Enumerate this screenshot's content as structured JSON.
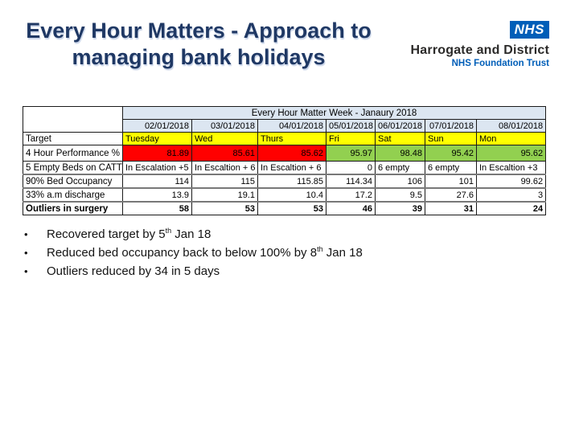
{
  "slide_title": {
    "line1": "Every Hour Matters - Approach to",
    "line2": "managing bank holidays"
  },
  "logo": {
    "nhs_text": "NHS",
    "org_name": "Harrogate and District",
    "org_sub": "NHS Foundation Trust"
  },
  "colors": {
    "title_navy": "#1f3864",
    "nhs_blue": "#005eb8",
    "header_blue": "#dce6f1",
    "day_yellow": "#ffff00",
    "alert_red": "#ff0000",
    "ok_green": "#92d050"
  },
  "table": {
    "title": "Every Hour Matter Week - Janaury 2018",
    "dates": [
      "02/01/2018",
      "03/01/2018",
      "04/01/2018",
      "05/01/2018",
      "06/01/2018",
      "07/01/2018",
      "08/01/2018"
    ],
    "target_label": "Target",
    "days": [
      "Tuesday",
      "Wed",
      "Thurs",
      "Fri",
      "Sat",
      "Sun",
      "Mon"
    ],
    "data_rows": [
      {
        "label": "4 Hour Performance %",
        "cells": [
          {
            "text": "81.89",
            "bg": "#ff0000"
          },
          {
            "text": "85.61",
            "bg": "#ff0000"
          },
          {
            "text": "85.62",
            "bg": "#ff0000"
          },
          {
            "text": "95.97",
            "bg": "#92d050"
          },
          {
            "text": "98.48",
            "bg": "#92d050"
          },
          {
            "text": "95.42",
            "bg": "#92d050"
          },
          {
            "text": "95.62",
            "bg": "#92d050"
          }
        ]
      },
      {
        "label": "5 Empty Beds on CATT",
        "cells": [
          {
            "text": "In Escalation +5"
          },
          {
            "text": "In Escaltion + 6"
          },
          {
            "text": "In Escaltion + 6"
          },
          {
            "text": "0"
          },
          {
            "text": "6 empty"
          },
          {
            "text": "6 empty"
          },
          {
            "text": "In Escaltion +3"
          }
        ]
      },
      {
        "label": "90% Bed Occupancy",
        "cells": [
          {
            "text": "114"
          },
          {
            "text": "115"
          },
          {
            "text": "115.85"
          },
          {
            "text": "114.34"
          },
          {
            "text": "106"
          },
          {
            "text": "101"
          },
          {
            "text": "99.62"
          }
        ]
      },
      {
        "label": "33% a.m discharge",
        "cells": [
          {
            "text": "13.9"
          },
          {
            "text": "19.1"
          },
          {
            "text": "10.4"
          },
          {
            "text": "17.2"
          },
          {
            "text": "9.5"
          },
          {
            "text": "27.6"
          },
          {
            "text": "3"
          }
        ]
      },
      {
        "label": "Outliers in surgery",
        "cells": [
          {
            "text": "58"
          },
          {
            "text": "53"
          },
          {
            "text": "53"
          },
          {
            "text": "46"
          },
          {
            "text": "39"
          },
          {
            "text": "31"
          },
          {
            "text": "24"
          }
        ]
      }
    ]
  },
  "bullets": [
    {
      "pre": "Recovered target by 5",
      "sup": "th",
      "post": " Jan 18"
    },
    {
      "pre": "Reduced bed occupancy back to below 100% by 8",
      "sup": "th",
      "post": " Jan 18"
    },
    {
      "pre": "Outliers reduced by 34 in 5 days",
      "sup": "",
      "post": ""
    }
  ]
}
